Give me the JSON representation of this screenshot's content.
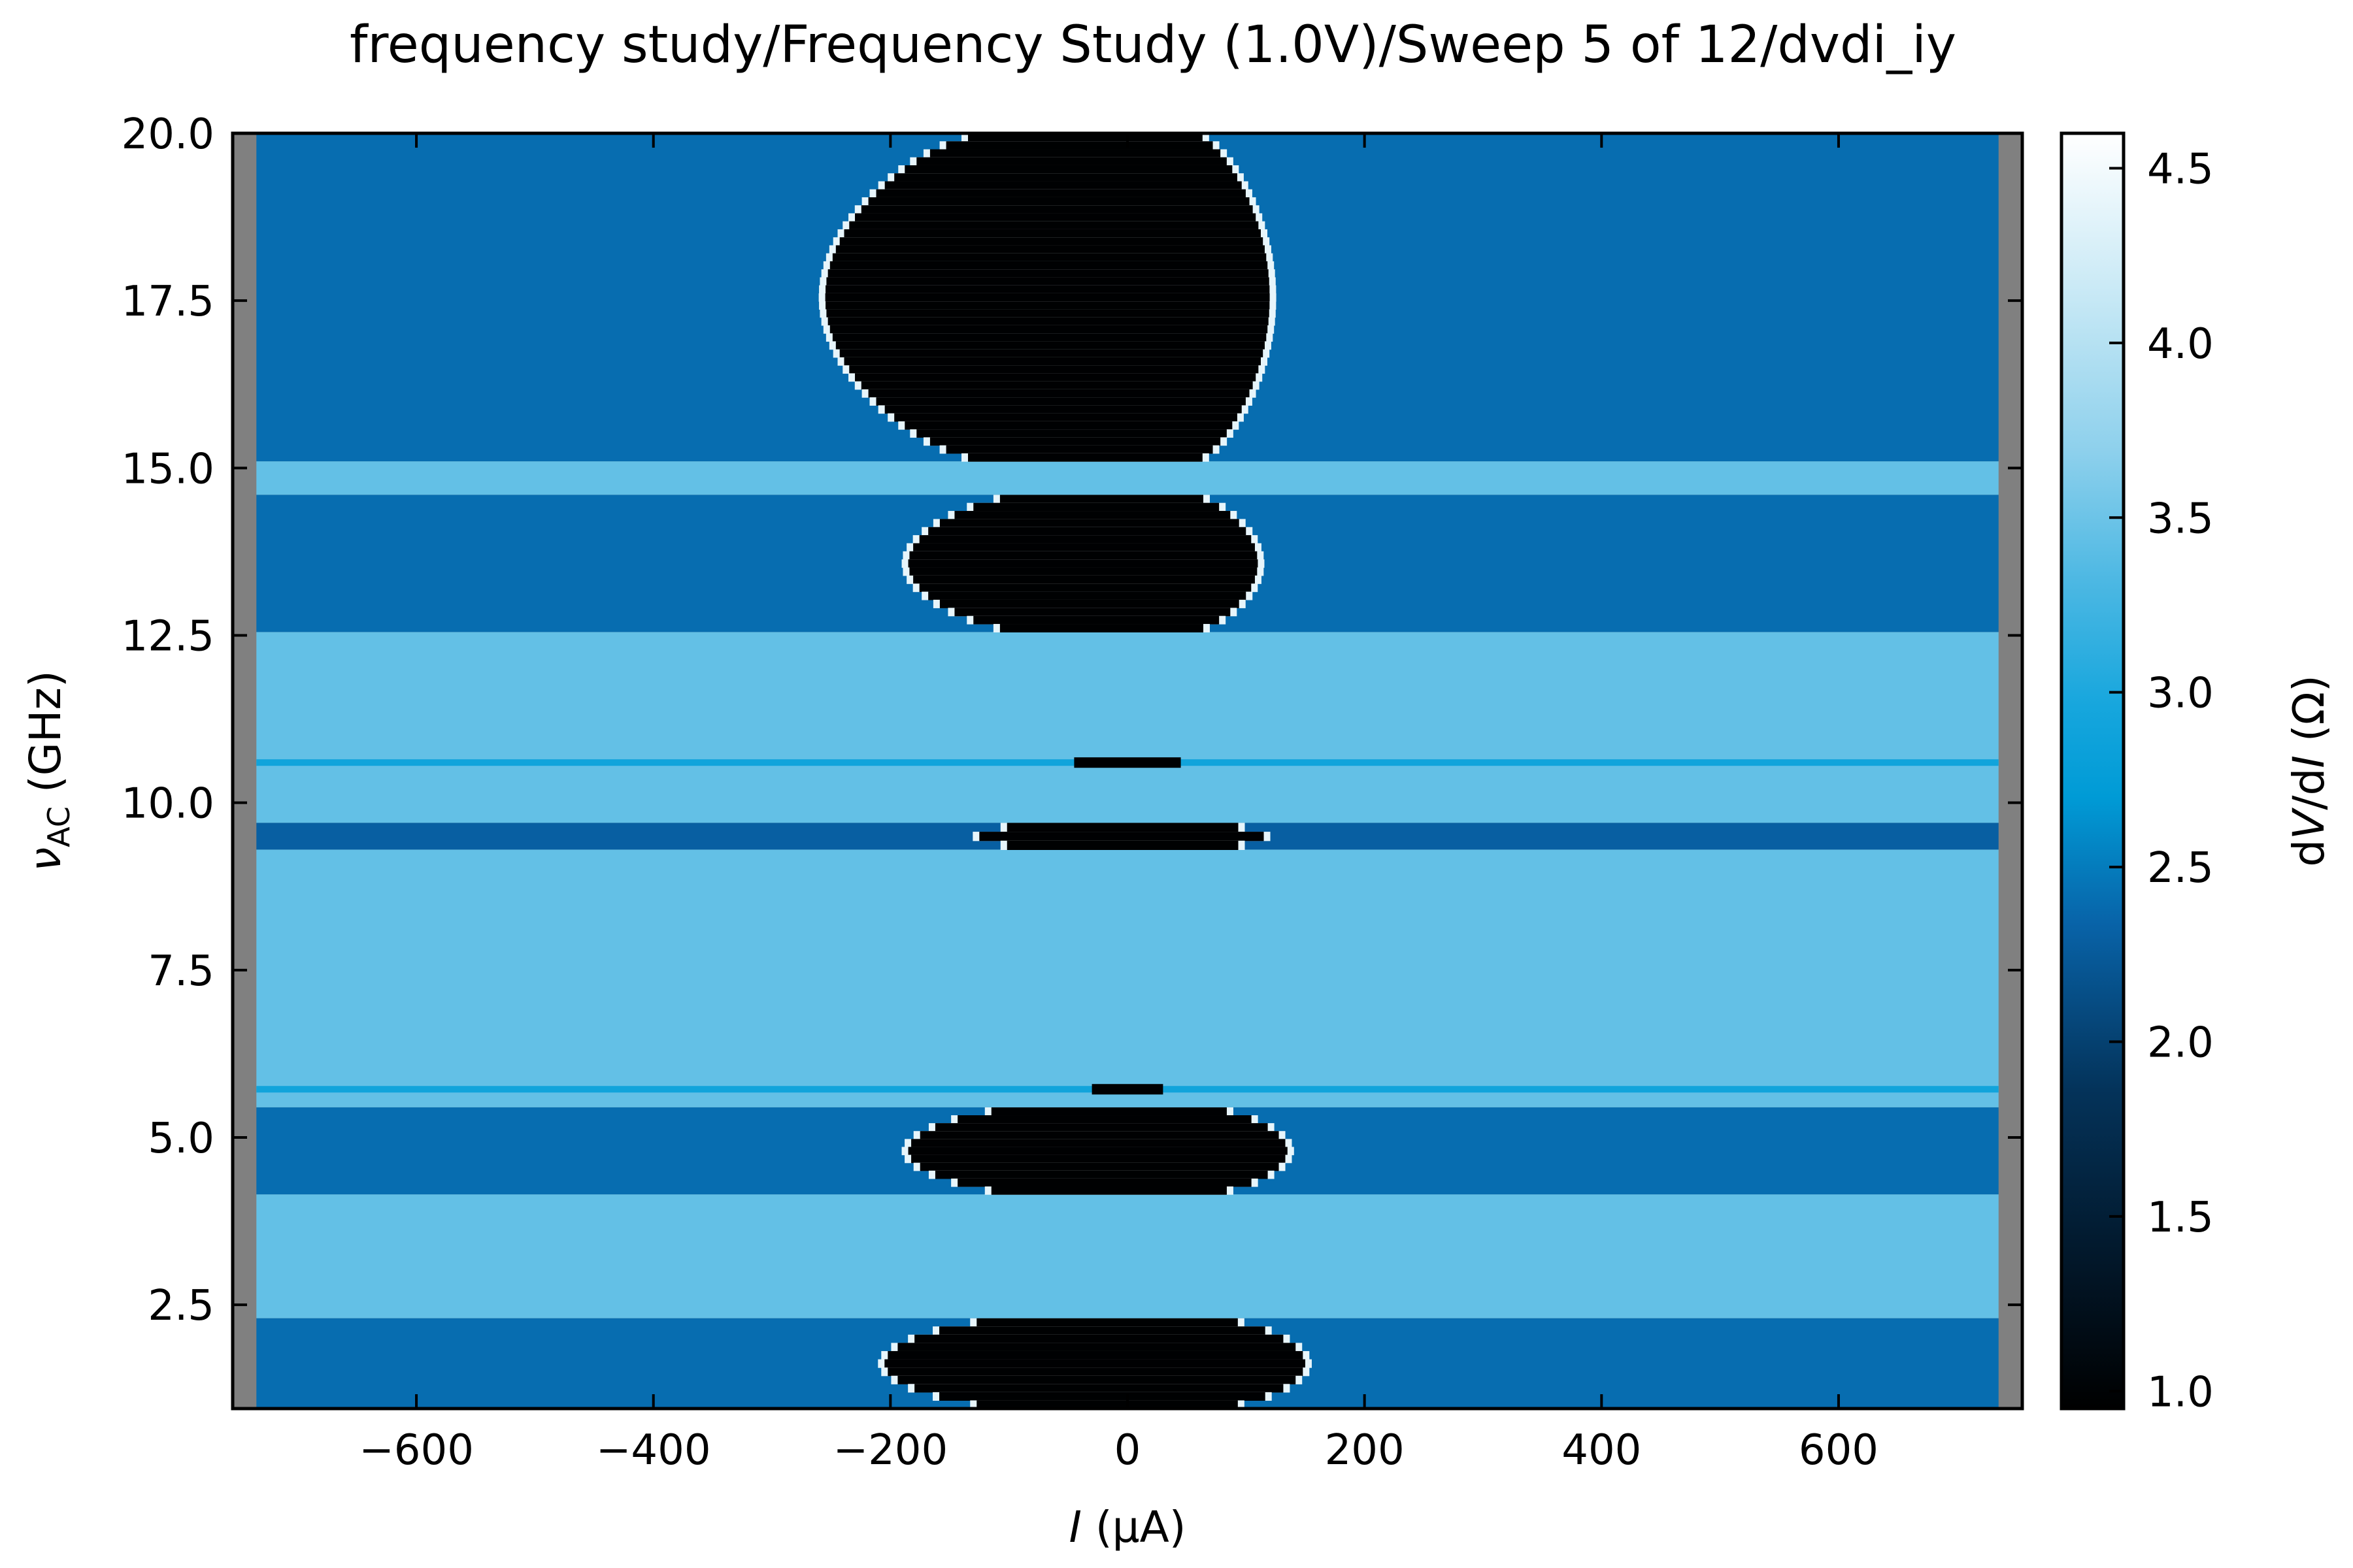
{
  "chart_data": {
    "type": "heatmap",
    "title": "frequency study/Frequency Study (1.0V)/Sweep 5 of 12/dvdi_iy",
    "xlabel": {
      "symbol": "I",
      "unit": " (μA)"
    },
    "ylabel": {
      "symbol": "ν",
      "subscript": "AC",
      "unit": " (GHz)"
    },
    "colorbar_label": {
      "prefix": "d",
      "v": "V",
      "mid": "/d",
      "i": "I",
      "unit": " (Ω)"
    },
    "xlim": [
      -755,
      755
    ],
    "ylim": [
      0.95,
      20.0
    ],
    "data_xrange": [
      -735,
      735
    ],
    "clim": [
      0.95,
      4.6
    ],
    "colormap": "blue-white (black → blue → light blue → white)",
    "nan_color": "#808080",
    "grid": false,
    "x_ticks": [
      {
        "value": -600,
        "label": "−600"
      },
      {
        "value": -400,
        "label": "−400"
      },
      {
        "value": -200,
        "label": "−200"
      },
      {
        "value": 0,
        "label": "0"
      },
      {
        "value": 200,
        "label": "200"
      },
      {
        "value": 400,
        "label": "400"
      },
      {
        "value": 600,
        "label": "600"
      }
    ],
    "y_ticks": [
      {
        "value": 2.5,
        "label": "2.5"
      },
      {
        "value": 5.0,
        "label": "5.0"
      },
      {
        "value": 7.5,
        "label": "7.5"
      },
      {
        "value": 10.0,
        "label": "10.0"
      },
      {
        "value": 12.5,
        "label": "12.5"
      },
      {
        "value": 15.0,
        "label": "15.0"
      },
      {
        "value": 17.5,
        "label": "17.5"
      },
      {
        "value": 20.0,
        "label": "20.0"
      }
    ],
    "colorbar_ticks": [
      {
        "value": 1.0,
        "label": "1.0"
      },
      {
        "value": 1.5,
        "label": "1.5"
      },
      {
        "value": 2.0,
        "label": "2.0"
      },
      {
        "value": 2.5,
        "label": "2.5"
      },
      {
        "value": 3.0,
        "label": "3.0"
      },
      {
        "value": 3.5,
        "label": "3.5"
      },
      {
        "value": 4.0,
        "label": "4.0"
      },
      {
        "value": 4.5,
        "label": "4.5"
      }
    ],
    "frequency_bands": [
      {
        "f_min": 0.95,
        "f_max": 2.3,
        "background_dvdi": 2.4,
        "suppressed_current": [
          -205,
          150
        ],
        "edge_dvdi": 4.4
      },
      {
        "f_min": 2.3,
        "f_max": 4.15,
        "background_dvdi": 3.45,
        "suppressed_current": null
      },
      {
        "f_min": 4.15,
        "f_max": 5.45,
        "background_dvdi": 2.4,
        "suppressed_current": [
          -185,
          135
        ],
        "edge_dvdi": 4.4
      },
      {
        "f_min": 5.45,
        "f_max": 9.3,
        "background_dvdi": 3.45,
        "suppressed_current": null
      },
      {
        "f_min": 9.3,
        "f_max": 9.7,
        "background_dvdi": 2.3,
        "suppressed_current": [
          -125,
          115
        ],
        "edge_dvdi": 4.4
      },
      {
        "f_min": 9.7,
        "f_max": 12.55,
        "background_dvdi": 3.45,
        "suppressed_current": null
      },
      {
        "f_min": 12.55,
        "f_max": 14.6,
        "background_dvdi": 2.4,
        "suppressed_current": [
          -185,
          110
        ],
        "edge_dvdi": 4.4
      },
      {
        "f_min": 14.6,
        "f_max": 15.1,
        "background_dvdi": 3.45,
        "suppressed_current": null
      },
      {
        "f_min": 15.1,
        "f_max": 20.0,
        "background_dvdi": 2.4,
        "suppressed_current": [
          -255,
          120
        ],
        "edge_dvdi": 4.4
      }
    ],
    "narrow_features": [
      {
        "f": 10.6,
        "suppressed_current": [
          -45,
          45
        ]
      },
      {
        "f": 5.72,
        "suppressed_current": [
          -30,
          30
        ]
      }
    ],
    "suppressed_dvdi": 0.97
  }
}
